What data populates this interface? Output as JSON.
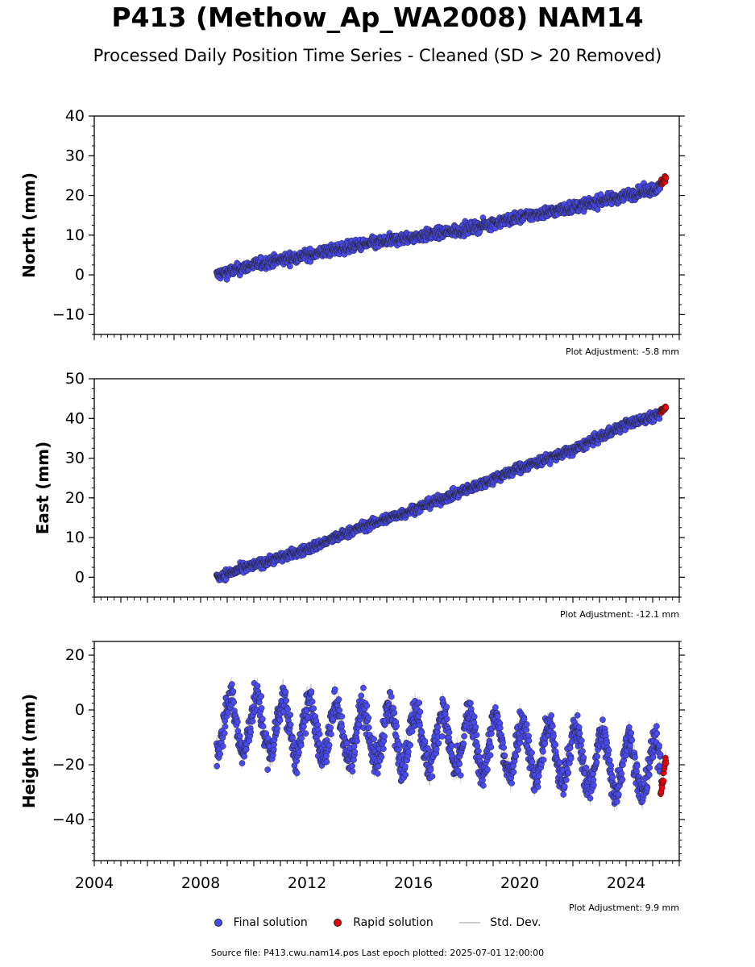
{
  "title": "P413 (Methow_Ap_WA2008) NAM14",
  "subtitle": "Processed Daily Position Time Series - Cleaned (SD > 20 Removed)",
  "legend": {
    "final": "Final solution",
    "rapid": "Rapid solution",
    "std": "Std. Dev."
  },
  "source": "Source file: P413.cwu.nam14.pos  Last epoch plotted: 2025-07-01 12:00:00",
  "colors": {
    "final": "#4a4af2",
    "rapid": "#e8000b",
    "std": "#cccccc",
    "edge": "#222222"
  },
  "chart_data": [
    {
      "type": "scatter",
      "ylabel": "North (mm)",
      "xlim": [
        2004,
        2026
      ],
      "ylim": [
        -15,
        40
      ],
      "yticks": [
        -10,
        0,
        10,
        20,
        30,
        40
      ],
      "xticks": [
        2004,
        2008,
        2012,
        2016,
        2020,
        2024
      ],
      "show_xtick_labels": false,
      "adjustment": "Plot Adjustment: -5.8 mm",
      "series": [
        {
          "name": "Final solution",
          "x": [
            2008.6,
            2010.0,
            2012.0,
            2014.0,
            2016.0,
            2018.0,
            2020.0,
            2022.0,
            2024.0,
            2025.3
          ],
          "y": [
            0.0,
            2.5,
            5.0,
            7.5,
            9.5,
            11.5,
            14.5,
            17.0,
            20.0,
            22.0
          ],
          "noise": 1.3
        },
        {
          "name": "Rapid solution",
          "x": [
            2025.3,
            2025.5
          ],
          "y": [
            23.0,
            24.5
          ],
          "noise": 0.8
        }
      ]
    },
    {
      "type": "scatter",
      "ylabel": "East (mm)",
      "xlim": [
        2004,
        2026
      ],
      "ylim": [
        -5,
        50
      ],
      "yticks": [
        0,
        10,
        20,
        30,
        40,
        50
      ],
      "xticks": [
        2004,
        2008,
        2012,
        2016,
        2020,
        2024
      ],
      "show_xtick_labels": false,
      "adjustment": "Plot Adjustment: -12.1 mm",
      "series": [
        {
          "name": "Final solution",
          "x": [
            2008.6,
            2010.0,
            2012.0,
            2014.0,
            2016.0,
            2018.0,
            2020.0,
            2022.0,
            2024.0,
            2025.3
          ],
          "y": [
            0.0,
            3.0,
            7.0,
            12.5,
            17.0,
            22.0,
            27.5,
            32.0,
            38.5,
            41.0
          ],
          "noise": 1.1
        },
        {
          "name": "Rapid solution",
          "x": [
            2025.3,
            2025.5
          ],
          "y": [
            41.5,
            43.0
          ],
          "noise": 0.6
        }
      ]
    },
    {
      "type": "scatter",
      "ylabel": "Height (mm)",
      "xlim": [
        2004,
        2026
      ],
      "ylim": [
        -55,
        25
      ],
      "yticks": [
        -40,
        -20,
        0,
        20
      ],
      "xticks": [
        2004,
        2008,
        2012,
        2016,
        2020,
        2024
      ],
      "xtick_labels": [
        "2004",
        "2008",
        "2012",
        "2016",
        "2020",
        "2024"
      ],
      "show_xtick_labels": true,
      "adjustment": "Plot Adjustment: 9.9 mm",
      "series": [
        {
          "name": "Final solution",
          "x": [
            2008.6,
            2012.0,
            2016.0,
            2020.0,
            2024.0,
            2025.3
          ],
          "y": [
            -5.0,
            -7.0,
            -10.0,
            -14.0,
            -20.0,
            -22.0
          ],
          "seasonal_amplitude": 10,
          "noise": 5.5
        },
        {
          "name": "Rapid solution",
          "x": [
            2025.3,
            2025.5
          ],
          "y": [
            -30.0,
            -18.0
          ],
          "noise": 2.0
        }
      ]
    }
  ]
}
